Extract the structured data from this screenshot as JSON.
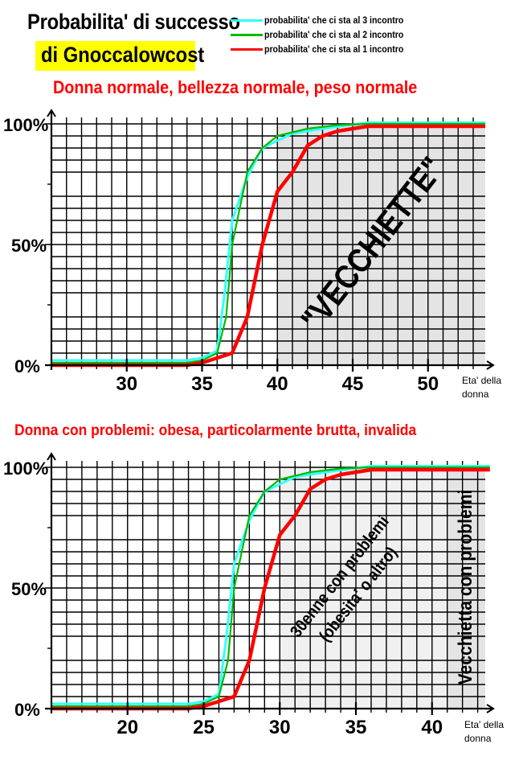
{
  "header": {
    "title_line1": "Probabilita' di successo",
    "title_line2": "di Gnoccalowcost"
  },
  "legend": [
    {
      "label": "probabilita' che ci sta al 3 incontro",
      "color": "#33ffff"
    },
    {
      "label": "probabilita' che ci sta al 2 incontro",
      "color": "#00bb00"
    },
    {
      "label": "probabilita' che ci sta al 1 incontro",
      "color": "#ff0000"
    }
  ],
  "colors": {
    "accent_red": "#ff0000",
    "highlight_yellow": "#ffff00",
    "shade_dark": "#e4e4e4",
    "shade_light": "#f0f0f0"
  },
  "chart_data": [
    {
      "type": "line",
      "title": "Donna normale, bellezza normale, peso normale",
      "xlabel": "Eta' della donna",
      "ylabel": "",
      "xlim": [
        25,
        53.8
      ],
      "ylim": [
        0,
        100
      ],
      "x_ticks": [
        30,
        35,
        40,
        45,
        50
      ],
      "y_ticks": [
        "0%",
        "50%",
        "100%"
      ],
      "grid": true,
      "legend_position": "top-right",
      "shaded_regions": [
        {
          "from": 40,
          "to": 53.8,
          "color": "#e4e4e4",
          "label": "\"VECCHIETTE\""
        }
      ],
      "series": [
        {
          "name": "probabilita' che ci sta al 3 incontro",
          "color": "#33ffff",
          "points": [
            [
              25,
              2
            ],
            [
              34,
              2
            ],
            [
              35,
              3
            ],
            [
              36,
              6
            ],
            [
              36.5,
              30
            ],
            [
              37,
              60
            ],
            [
              38,
              78
            ],
            [
              39,
              90
            ],
            [
              40,
              93
            ],
            [
              41,
              96
            ],
            [
              43,
              98
            ],
            [
              46,
              100.5
            ],
            [
              53.8,
              100.5
            ]
          ]
        },
        {
          "name": "probabilita' che ci sta al 2 incontro",
          "color": "#00bb00",
          "points": [
            [
              25,
              1
            ],
            [
              34,
              1
            ],
            [
              35,
              2
            ],
            [
              36,
              5
            ],
            [
              36.6,
              20
            ],
            [
              37,
              50
            ],
            [
              37.5,
              65
            ],
            [
              38,
              80
            ],
            [
              39,
              90
            ],
            [
              40,
              95
            ],
            [
              42,
              98
            ],
            [
              44,
              99.5
            ],
            [
              46,
              100
            ],
            [
              53.8,
              100
            ]
          ]
        },
        {
          "name": "probabilita' che ci sta al 1 incontro",
          "color": "#ff0000",
          "points": [
            [
              25,
              0
            ],
            [
              34,
              0
            ],
            [
              35,
              1
            ],
            [
              36,
              3
            ],
            [
              37,
              5
            ],
            [
              38,
              20
            ],
            [
              39,
              50
            ],
            [
              40,
              72
            ],
            [
              41,
              80
            ],
            [
              42,
              91
            ],
            [
              43,
              95
            ],
            [
              44,
              97
            ],
            [
              45,
              98
            ],
            [
              46,
              99
            ],
            [
              53.8,
              99
            ]
          ]
        }
      ]
    },
    {
      "type": "line",
      "title": "Donna con problemi: obesa, particolarmente brutta, invalida",
      "xlabel": "Eta' della donna",
      "ylabel": "",
      "xlim": [
        15,
        43.8
      ],
      "ylim": [
        0,
        100
      ],
      "x_ticks": [
        20,
        25,
        30,
        35,
        40
      ],
      "y_ticks": [
        "0%",
        "50%",
        "100%"
      ],
      "grid": true,
      "shaded_regions": [
        {
          "from": 30,
          "to": 41,
          "color": "#f0f0f0",
          "label": "30enne con problemi (obesita' o altro)"
        },
        {
          "from": 41,
          "to": 43.8,
          "color": "#e4e4e4",
          "label": "Vecchietta con problemi"
        }
      ],
      "series": [
        {
          "name": "probabilita' che ci sta al 3 incontro",
          "color": "#33ffff",
          "points": [
            [
              15,
              2
            ],
            [
              24,
              2
            ],
            [
              25,
              3
            ],
            [
              26,
              6
            ],
            [
              26.5,
              30
            ],
            [
              27,
              60
            ],
            [
              28,
              78
            ],
            [
              29,
              90
            ],
            [
              30,
              93
            ],
            [
              31,
              96
            ],
            [
              33,
              98
            ],
            [
              36,
              100.5
            ],
            [
              43.8,
              100.5
            ]
          ]
        },
        {
          "name": "probabilita' che ci sta al 2 incontro",
          "color": "#00bb00",
          "points": [
            [
              15,
              1
            ],
            [
              24,
              1
            ],
            [
              25,
              2
            ],
            [
              26,
              5
            ],
            [
              26.6,
              20
            ],
            [
              27,
              50
            ],
            [
              27.5,
              65
            ],
            [
              28,
              80
            ],
            [
              29,
              90
            ],
            [
              30,
              95
            ],
            [
              32,
              98
            ],
            [
              34,
              99.5
            ],
            [
              36,
              100
            ],
            [
              43.8,
              100
            ]
          ]
        },
        {
          "name": "probabilita' che ci sta al 1 incontro",
          "color": "#ff0000",
          "points": [
            [
              15,
              0
            ],
            [
              24,
              0
            ],
            [
              25,
              1
            ],
            [
              26,
              3
            ],
            [
              27,
              5
            ],
            [
              28,
              20
            ],
            [
              29,
              50
            ],
            [
              30,
              72
            ],
            [
              31,
              80
            ],
            [
              32,
              91
            ],
            [
              33,
              95
            ],
            [
              34,
              97
            ],
            [
              35,
              98
            ],
            [
              36,
              99
            ],
            [
              43.8,
              99
            ]
          ]
        }
      ]
    }
  ],
  "charts_text": {
    "top": {
      "subtitle": "Donna normale, bellezza normale, peso normale",
      "y_labels": [
        "100%",
        "50%",
        "0%"
      ],
      "x_labels": [
        "30",
        "35",
        "40",
        "45",
        "50"
      ],
      "x_title_line1": "Eta' della",
      "x_title_line2": "donna",
      "region_label": "\"VECCHIETTE\""
    },
    "bottom": {
      "subtitle": "Donna con problemi: obesa, particolarmente brutta, invalida",
      "y_labels": [
        "100%",
        "50%",
        "0%"
      ],
      "x_labels": [
        "20",
        "25",
        "30",
        "35",
        "40"
      ],
      "x_title_line1": "Eta' della",
      "x_title_line2": "donna",
      "region_label_line1": "30enne con problemi",
      "region_label_line2": "(obesita' o altro)",
      "region_label_2": "Vecchietta con problemi"
    }
  }
}
